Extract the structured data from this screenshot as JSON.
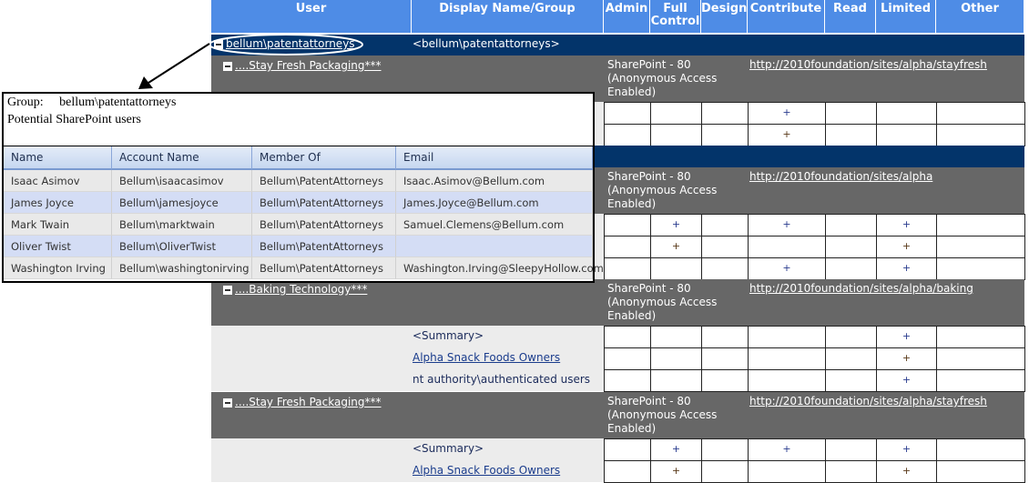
{
  "columns": [
    "User",
    "Display Name/Group",
    "Admin",
    "Full Control",
    "Design",
    "Contribute",
    "Read",
    "Limited",
    "Other"
  ],
  "group_row": {
    "user": "bellum\\patentattorneys",
    "display": "<bellum\\patentattorneys>"
  },
  "sites": [
    {
      "name": "....Stay Fresh Packaging***",
      "server": "SharePoint - 80 (Anonymous Access Enabled)",
      "url": "http://2010foundation/sites/alpha/stayfresh",
      "rows": [
        {
          "label": "",
          "perms": [
            "",
            "",
            "",
            "+",
            "",
            "",
            ""
          ]
        },
        {
          "label": "",
          "perms": [
            "",
            "",
            "",
            "+",
            "",
            "",
            ""
          ]
        }
      ]
    },
    {
      "name": "",
      "server": "SharePoint - 80 (Anonymous Access Enabled)",
      "url": "http://2010foundation/sites/alpha",
      "rows": [
        {
          "label": "",
          "perms": [
            "",
            "+",
            "",
            "+",
            "",
            "+",
            ""
          ]
        },
        {
          "label": "",
          "perms": [
            "",
            "+",
            "",
            "",
            "",
            "+",
            ""
          ]
        },
        {
          "label": "",
          "perms": [
            "",
            "",
            "",
            "+",
            "",
            "+",
            ""
          ]
        }
      ]
    },
    {
      "name": "....Baking Technology***",
      "server": "SharePoint - 80 (Anonymous Access Enabled)",
      "url": "http://2010foundation/sites/alpha/baking",
      "rows": [
        {
          "label": "<Summary>",
          "perms": [
            "",
            "",
            "",
            "",
            "",
            "+",
            ""
          ]
        },
        {
          "label": "Alpha Snack Foods Owners",
          "link": true,
          "perms": [
            "",
            "",
            "",
            "",
            "",
            "+",
            ""
          ]
        },
        {
          "label": "nt authority\\authenticated users",
          "perms": [
            "",
            "",
            "",
            "",
            "",
            "+",
            ""
          ]
        }
      ]
    },
    {
      "name": "....Stay Fresh Packaging***",
      "server": "SharePoint - 80 (Anonymous Access Enabled)",
      "url": "http://2010foundation/sites/alpha/stayfresh",
      "rows": [
        {
          "label": "<Summary>",
          "perms": [
            "",
            "+",
            "",
            "+",
            "",
            "+",
            ""
          ]
        },
        {
          "label": "Alpha Snack Foods Owners",
          "link": true,
          "perms": [
            "",
            "+",
            "",
            "",
            "",
            "+",
            ""
          ]
        }
      ]
    }
  ],
  "popup": {
    "group_label": "Group:",
    "group_value": "bellum\\patentattorneys",
    "subtitle": "Potential SharePoint users",
    "columns": [
      "Name",
      "Account Name",
      "Member Of",
      "Email"
    ],
    "rows": [
      [
        "Isaac Asimov",
        "Bellum\\isaacasimov",
        "Bellum\\PatentAttorneys",
        "Isaac.Asimov@Bellum.com"
      ],
      [
        "James Joyce",
        "Bellum\\jamesjoyce",
        "Bellum\\PatentAttorneys",
        "James.Joyce@Bellum.com"
      ],
      [
        "Mark Twain",
        "Bellum\\marktwain",
        "Bellum\\PatentAttorneys",
        "Samuel.Clemens@Bellum.com"
      ],
      [
        "Oliver Twist",
        "Bellum\\OliverTwist",
        "Bellum\\PatentAttorneys",
        ""
      ],
      [
        "Washington Irving",
        "Bellum\\washingtonirving",
        "Bellum\\PatentAttorneys",
        "Washington.Irving@SleepyHollow.com"
      ]
    ]
  },
  "colors": {
    "header": "#4e8ce6",
    "group_row": "#03346a",
    "site_row": "#676767"
  }
}
